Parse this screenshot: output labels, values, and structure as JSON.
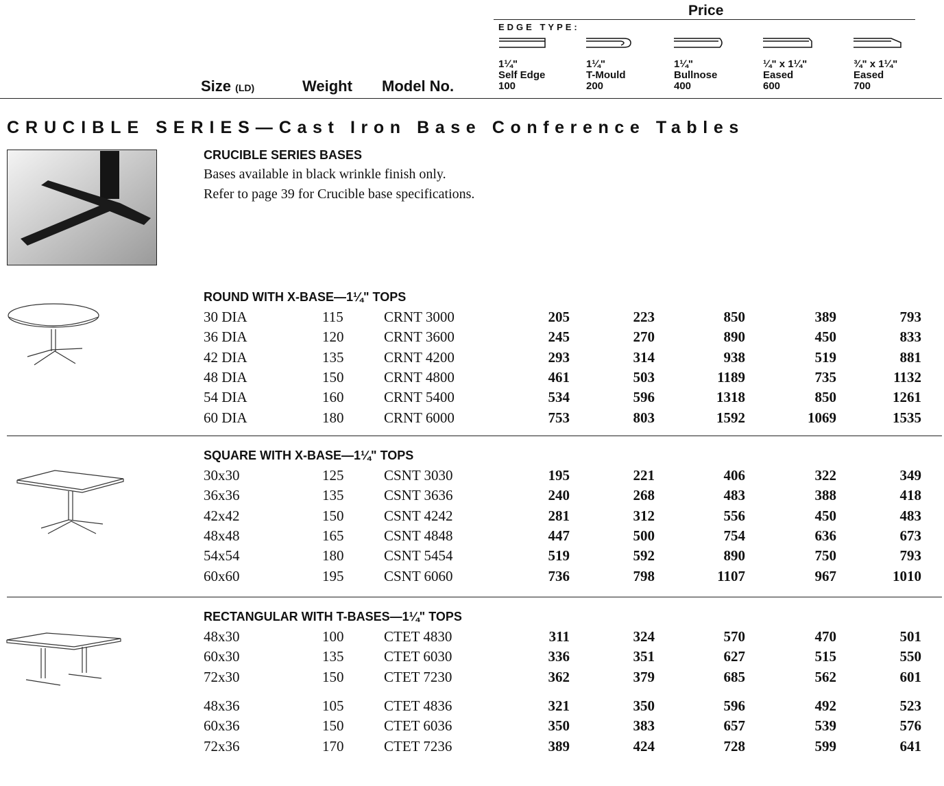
{
  "header": {
    "price": "Price",
    "edge_type": "EDGE TYPE:",
    "size": "Size",
    "size_unit": "(LD)",
    "weight": "Weight",
    "model": "Model No.",
    "edges": [
      {
        "dim": "1¼\"",
        "name": "Self Edge",
        "code": "100"
      },
      {
        "dim": "1¼\"",
        "name": "T-Mould",
        "code": "200"
      },
      {
        "dim": "1¼\"",
        "name": "Bullnose",
        "code": "400"
      },
      {
        "dim": "¼\" x 1¼\"",
        "name": "Eased",
        "code": "600"
      },
      {
        "dim": "¾\" x 1¼\"",
        "name": "Eased",
        "code": "700"
      }
    ]
  },
  "section": {
    "series": "CRUCIBLE SERIES—",
    "subtitle": "Cast Iron Base Conference Tables"
  },
  "bases": {
    "title": "CRUCIBLE SERIES BASES",
    "lines": [
      "Bases available in black wrinkle finish only.",
      "Refer to page 39 for Crucible base specifications."
    ]
  },
  "groups": [
    {
      "title": "ROUND WITH X-BASE—1¼\" TOPS",
      "rows": [
        [
          "30 DIA",
          115,
          "CRNT 3000",
          205,
          223,
          850,
          389,
          793
        ],
        [
          "36 DIA",
          120,
          "CRNT 3600",
          245,
          270,
          890,
          450,
          833
        ],
        [
          "42 DIA",
          135,
          "CRNT 4200",
          293,
          314,
          938,
          519,
          881
        ],
        [
          "48 DIA",
          150,
          "CRNT 4800",
          461,
          503,
          1189,
          735,
          1132
        ],
        [
          "54 DIA",
          160,
          "CRNT 5400",
          534,
          596,
          1318,
          850,
          1261
        ],
        [
          "60 DIA",
          180,
          "CRNT 6000",
          753,
          803,
          1592,
          1069,
          1535
        ]
      ]
    },
    {
      "title": "SQUARE WITH X-BASE—1¼\" TOPS",
      "rows": [
        [
          "30x30",
          125,
          "CSNT 3030",
          195,
          221,
          406,
          322,
          349
        ],
        [
          "36x36",
          135,
          "CSNT 3636",
          240,
          268,
          483,
          388,
          418
        ],
        [
          "42x42",
          150,
          "CSNT 4242",
          281,
          312,
          556,
          450,
          483
        ],
        [
          "48x48",
          165,
          "CSNT 4848",
          447,
          500,
          754,
          636,
          673
        ],
        [
          "54x54",
          180,
          "CSNT 5454",
          519,
          592,
          890,
          750,
          793
        ],
        [
          "60x60",
          195,
          "CSNT 6060",
          736,
          798,
          1107,
          967,
          1010
        ]
      ]
    },
    {
      "title": "RECTANGULAR WITH T-BASES—1¼\" TOPS",
      "rows": [
        [
          "48x30",
          100,
          "CTET 4830",
          311,
          324,
          570,
          470,
          501
        ],
        [
          "60x30",
          135,
          "CTET 6030",
          336,
          351,
          627,
          515,
          550
        ],
        [
          "72x30",
          150,
          "CTET 7230",
          362,
          379,
          685,
          562,
          601
        ],
        [
          "48x36",
          105,
          "CTET 4836",
          321,
          350,
          596,
          492,
          523
        ],
        [
          "60x36",
          150,
          "CTET 6036",
          350,
          383,
          657,
          539,
          576
        ],
        [
          "72x36",
          170,
          "CTET 7236",
          389,
          424,
          728,
          599,
          641
        ]
      ]
    }
  ]
}
